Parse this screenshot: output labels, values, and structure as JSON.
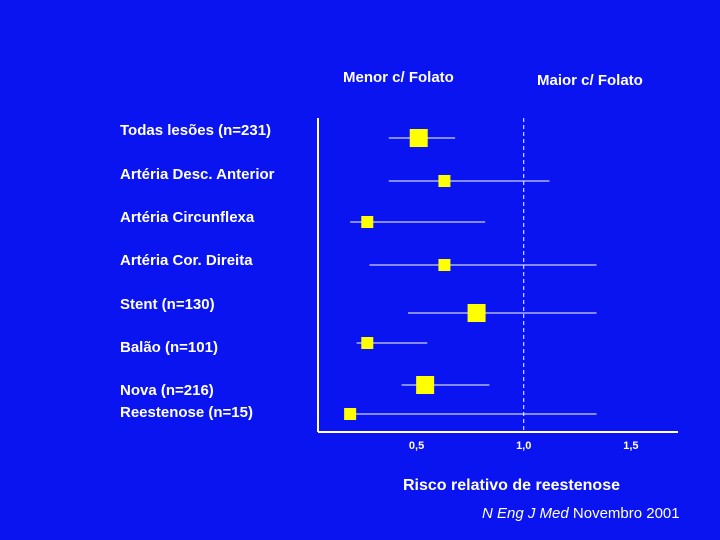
{
  "header": {
    "left_label": "Menor c/ Folato",
    "right_label": "Maior c/ Folato"
  },
  "chart_data": {
    "type": "forest",
    "xlabel": "Risco relativo de reestenose",
    "xlim": [
      0.04,
      1.72
    ],
    "x_ticks": [
      "0,5",
      "1,0",
      "1,5"
    ],
    "x_tick_values": [
      0.5,
      1.0,
      1.5
    ],
    "reference_line": 1.0,
    "rows": [
      {
        "label": "Todas lesões (n=231)",
        "estimate": 0.51,
        "ci": [
          0.37,
          0.68
        ],
        "weight": "large"
      },
      {
        "label": "Artéria Desc. Anterior",
        "estimate": 0.63,
        "ci": [
          0.37,
          1.12
        ],
        "weight": "small"
      },
      {
        "label": "Artéria Circunflexa",
        "estimate": 0.27,
        "ci": [
          0.19,
          0.82
        ],
        "weight": "small"
      },
      {
        "label": "Artéria Cor. Direita",
        "estimate": 0.63,
        "ci": [
          0.28,
          1.34
        ],
        "weight": "small"
      },
      {
        "label": "Stent (n=130)",
        "estimate": 0.78,
        "ci": [
          0.46,
          1.34
        ],
        "weight": "large"
      },
      {
        "label": "Balão (n=101)",
        "estimate": 0.27,
        "ci": [
          0.22,
          0.55
        ],
        "weight": "small"
      },
      {
        "label": "Nova (n=216)",
        "estimate": 0.54,
        "ci": [
          0.43,
          0.84
        ],
        "weight": "large"
      },
      {
        "label": "Reestenose (n=15)",
        "estimate": 0.19,
        "ci": [
          0.19,
          1.34
        ],
        "weight": "small"
      }
    ]
  },
  "citation": {
    "journal": "N Eng J Med",
    "date": "Novembro 2001"
  },
  "colors": {
    "background": "#0a14f0",
    "text": "#ffffff",
    "marker": "#ffff00",
    "line": "#ffffff"
  }
}
